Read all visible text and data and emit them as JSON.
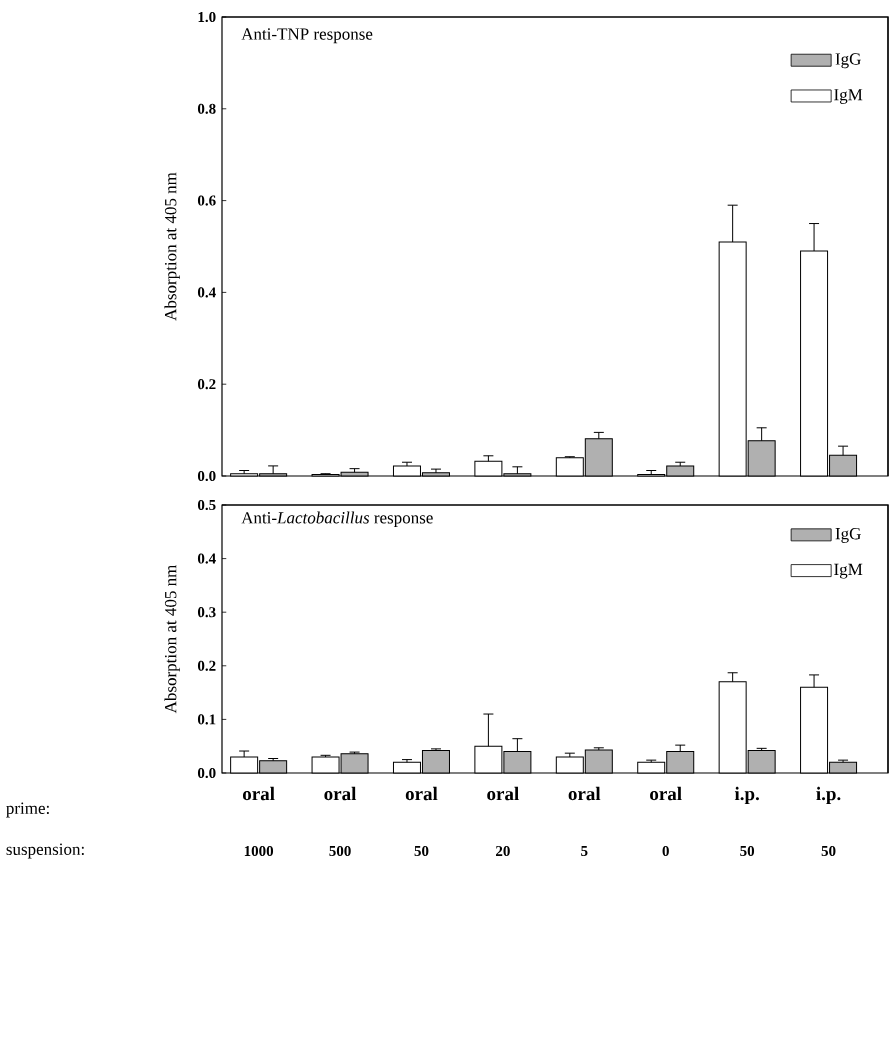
{
  "chart_data": [
    {
      "type": "bar",
      "title": "Anti-TNP response",
      "ylabel": "Absorption at 405 nm",
      "categories": [
        null,
        null,
        null,
        null,
        null,
        null,
        null,
        null
      ],
      "series": [
        {
          "name": "IgM",
          "color": "#ffffff",
          "values": [
            0.005,
            0.003,
            0.022,
            0.032,
            0.04,
            0.003,
            0.51,
            0.49
          ],
          "errors": [
            [
              0.005,
              0.012
            ],
            [
              0.003,
              0.005
            ],
            [
              0.022,
              0.03
            ],
            [
              0.032,
              0.044
            ],
            [
              0.04,
              0.042
            ],
            [
              0.003,
              0.012
            ],
            [
              0.51,
              0.59
            ],
            [
              0.49,
              0.55
            ]
          ]
        },
        {
          "name": "IgG",
          "color": "#b0b0b0",
          "values": [
            0.005,
            0.008,
            0.007,
            0.005,
            0.081,
            0.022,
            0.077,
            0.045
          ],
          "errors": [
            [
              0.005,
              0.022
            ],
            [
              0.008,
              0.016
            ],
            [
              0.007,
              0.015
            ],
            [
              0.005,
              0.02
            ],
            [
              0.081,
              0.095
            ],
            [
              0.022,
              0.03
            ],
            [
              0.077,
              0.105
            ],
            [
              0.045,
              0.065
            ]
          ]
        }
      ],
      "ylim": [
        0,
        1.0
      ],
      "yticks": [
        {
          "value": 0,
          "label": "0.0"
        },
        {
          "value": 0.2,
          "label": "0.2"
        },
        {
          "value": 0.4,
          "label": "0.4"
        },
        {
          "value": 0.6,
          "label": "0.6"
        },
        {
          "value": 0.8,
          "label": "0.8"
        },
        {
          "value": 1.0,
          "label": "1.0"
        }
      ],
      "legend": "top right",
      "tick_labels": "y"
    },
    {
      "type": "bar",
      "title": "Anti-*Lactobacillus* response",
      "ylabel": "Absorption at 405 nm",
      "categories": [
        "oral",
        "oral",
        "oral",
        "oral",
        "oral",
        "oral",
        "i.p.",
        "i.p."
      ],
      "series": [
        {
          "name": "IgM",
          "color": "#ffffff",
          "values": [
            0.03,
            0.03,
            0.02,
            0.05,
            0.03,
            0.02,
            0.17,
            0.16
          ],
          "errors": [
            [
              0.03,
              0.041
            ],
            [
              0.03,
              0.033
            ],
            [
              0.02,
              0.025
            ],
            [
              0.05,
              0.11
            ],
            [
              0.03,
              0.037
            ],
            [
              0.02,
              0.024
            ],
            [
              0.17,
              0.187
            ],
            [
              0.16,
              0.183
            ]
          ]
        },
        {
          "name": "IgG",
          "color": "#b0b0b0",
          "values": [
            0.023,
            0.036,
            0.042,
            0.04,
            0.043,
            0.04,
            0.042,
            0.02
          ],
          "errors": [
            [
              0.023,
              0.027
            ],
            [
              0.036,
              0.039
            ],
            [
              0.042,
              0.045
            ],
            [
              0.04,
              0.064
            ],
            [
              0.043,
              0.047
            ],
            [
              0.04,
              0.052
            ],
            [
              0.042,
              0.046
            ],
            [
              0.02,
              0.024
            ]
          ]
        }
      ],
      "ylim": [
        0,
        0.5
      ],
      "yticks": [
        {
          "value": 0,
          "label": "0.0"
        },
        {
          "value": 0.1,
          "label": "0.1"
        },
        {
          "value": 0.2,
          "label": "0.2"
        },
        {
          "value": 0.3,
          "label": "0.3"
        },
        {
          "value": 0.4,
          "label": "0.4"
        },
        {
          "value": 0.5,
          "label": "0.5"
        }
      ],
      "legend": "top right",
      "annotations": [
        "prime:",
        "suspension:",
        "1000",
        "500",
        "50",
        "20",
        "5",
        "0",
        "50",
        "50"
      ]
    }
  ]
}
